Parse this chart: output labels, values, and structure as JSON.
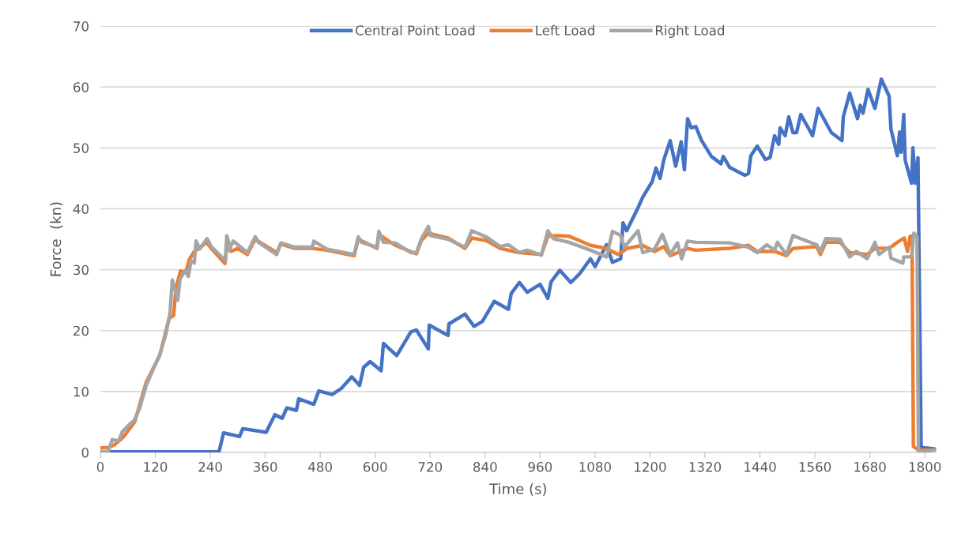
{
  "chart_data": {
    "type": "line",
    "xlabel": "Time (s)",
    "ylabel": "Force  (kn)",
    "xlim": [
      0,
      1825
    ],
    "xticks": [
      0,
      120,
      240,
      360,
      480,
      600,
      720,
      840,
      960,
      1080,
      1200,
      1320,
      1440,
      1560,
      1680,
      1800
    ],
    "ylim": [
      0,
      70
    ],
    "yticks": [
      0,
      10,
      20,
      30,
      40,
      50,
      60,
      70
    ],
    "grid": "y",
    "legend": "top",
    "marker": "none",
    "line_style": "solid",
    "series": [
      {
        "name": "Central Point Load",
        "color": "#4472c4",
        "x": [
          17,
          259,
          269,
          304,
          311,
          362,
          381,
          397,
          407,
          428,
          433,
          466,
          477,
          506,
          526,
          549,
          566,
          575,
          589,
          613,
          618,
          647,
          678,
          690,
          716,
          718,
          759,
          761,
          796,
          816,
          834,
          860,
          891,
          897,
          915,
          932,
          960,
          977,
          984,
          1003,
          1027,
          1046,
          1070,
          1080,
          1105,
          1118,
          1136,
          1141,
          1149,
          1174,
          1184,
          1205,
          1213,
          1222,
          1230,
          1244,
          1256,
          1268,
          1275,
          1282,
          1290,
          1300,
          1312,
          1334,
          1355,
          1360,
          1374,
          1407,
          1415,
          1420,
          1434,
          1452,
          1462,
          1472,
          1481,
          1484,
          1495,
          1503,
          1512,
          1520,
          1529,
          1555,
          1567,
          1596,
          1619,
          1622,
          1636,
          1653,
          1659,
          1665,
          1676,
          1691,
          1705,
          1722,
          1726,
          1740,
          1745,
          1748,
          1754,
          1757,
          1771,
          1774,
          1779,
          1785,
          1792,
          1821
        ],
        "values": [
          0.1,
          0.1,
          3.2,
          2.6,
          3.9,
          3.3,
          6.2,
          5.6,
          7.3,
          6.9,
          8.8,
          7.9,
          10.1,
          9.5,
          10.5,
          12.4,
          11.0,
          14.0,
          14.9,
          13.4,
          17.9,
          15.9,
          19.8,
          20.1,
          17.0,
          20.9,
          19.2,
          21.1,
          22.7,
          20.7,
          21.5,
          24.8,
          23.5,
          26.1,
          27.9,
          26.3,
          27.6,
          25.3,
          28.0,
          29.9,
          27.9,
          29.3,
          31.8,
          30.5,
          34.1,
          31.2,
          31.8,
          37.7,
          36.4,
          40.2,
          41.9,
          44.5,
          46.7,
          45.0,
          48.0,
          51.2,
          47.0,
          51.0,
          46.4,
          54.8,
          53.3,
          53.5,
          51.3,
          48.6,
          47.4,
          48.6,
          46.8,
          45.5,
          45.8,
          48.7,
          50.3,
          48.1,
          48.4,
          52.0,
          50.6,
          53.3,
          52.0,
          55.1,
          52.5,
          52.5,
          55.5,
          52.0,
          56.5,
          52.5,
          51.2,
          55.1,
          59.0,
          54.8,
          57.0,
          55.7,
          59.6,
          56.5,
          61.3,
          58.5,
          53.1,
          48.7,
          52.6,
          49.3,
          55.5,
          48.0,
          44.2,
          50.0,
          44.2,
          48.4,
          0.8,
          0.6
        ]
      },
      {
        "name": "Left Load",
        "color": "#ed7d31",
        "x": [
          0,
          17,
          30,
          50,
          75,
          100,
          130,
          150,
          160,
          165,
          175,
          186,
          195,
          205,
          215,
          232,
          242,
          272,
          278,
          285,
          300,
          321,
          338,
          385,
          394,
          425,
          463,
          494,
          554,
          563,
          604,
          608,
          644,
          690,
          701,
          716,
          759,
          796,
          811,
          842,
          873,
          915,
          963,
          977,
          1000,
          1023,
          1045,
          1070,
          1105,
          1130,
          1150,
          1184,
          1210,
          1230,
          1244,
          1282,
          1300,
          1374,
          1415,
          1434,
          1472,
          1498,
          1512,
          1564,
          1572,
          1584,
          1615,
          1636,
          1674,
          1691,
          1722,
          1740,
          1755,
          1762,
          1768,
          1772,
          1775,
          1785,
          1821
        ],
        "values": [
          0.7,
          0.8,
          1.2,
          2.5,
          5.0,
          11.5,
          16.0,
          22.0,
          22.5,
          27.0,
          29.8,
          29.5,
          31.8,
          33.0,
          33.5,
          34.5,
          33.5,
          31.0,
          35.0,
          33.0,
          33.5,
          32.5,
          35.0,
          32.8,
          34.2,
          33.5,
          33.5,
          33.2,
          32.3,
          35.0,
          33.5,
          35.8,
          34.0,
          32.6,
          34.8,
          36.0,
          35.2,
          33.5,
          35.2,
          34.8,
          33.5,
          32.8,
          32.5,
          35.5,
          35.6,
          35.5,
          34.8,
          34.0,
          33.5,
          32.5,
          33.5,
          34.0,
          33.0,
          33.8,
          32.3,
          33.5,
          33.2,
          33.5,
          34.0,
          33.0,
          33.0,
          32.3,
          33.5,
          33.8,
          32.5,
          34.5,
          34.5,
          32.8,
          32.5,
          33.5,
          33.5,
          34.5,
          35.2,
          33.0,
          35.5,
          35.5,
          1.0,
          0.4,
          0.4
        ]
      },
      {
        "name": "Right Load",
        "color": "#a5a5a5",
        "x": [
          0,
          17,
          26,
          40,
          48,
          62,
          74,
          86,
          100,
          114,
          129,
          143,
          152,
          157,
          169,
          174,
          186,
          192,
          198,
          205,
          209,
          217,
          233,
          242,
          273,
          276,
          281,
          290,
          321,
          338,
          345,
          385,
          394,
          425,
          463,
          466,
          494,
          554,
          563,
          570,
          604,
          608,
          618,
          644,
          678,
          690,
          701,
          716,
          721,
          759,
          796,
          811,
          842,
          873,
          891,
          915,
          932,
          963,
          977,
          989,
          1023,
          1070,
          1105,
          1118,
          1136,
          1144,
          1174,
          1184,
          1210,
          1227,
          1244,
          1260,
          1269,
          1282,
          1300,
          1374,
          1415,
          1434,
          1455,
          1472,
          1478,
          1498,
          1512,
          1529,
          1564,
          1572,
          1584,
          1615,
          1636,
          1650,
          1674,
          1691,
          1700,
          1722,
          1726,
          1752,
          1754,
          1771,
          1776,
          1783,
          1786,
          1821
        ],
        "values": [
          0.1,
          0.1,
          2.1,
          1.9,
          3.4,
          4.5,
          5.2,
          7.3,
          11.0,
          13.4,
          15.9,
          19.4,
          22.8,
          28.3,
          25.0,
          28.5,
          29.9,
          28.9,
          31.5,
          31.1,
          34.7,
          33.4,
          35.1,
          33.8,
          31.5,
          35.6,
          33.2,
          34.7,
          32.8,
          35.4,
          34.5,
          32.5,
          34.4,
          33.7,
          33.7,
          34.7,
          33.4,
          32.5,
          35.4,
          34.5,
          33.7,
          36.3,
          34.5,
          34.4,
          32.8,
          32.8,
          35.1,
          37.1,
          35.6,
          35.0,
          33.7,
          36.4,
          35.4,
          33.8,
          34.1,
          32.8,
          33.2,
          32.4,
          36.4,
          35.1,
          34.5,
          33.2,
          32.1,
          36.3,
          35.6,
          33.7,
          36.4,
          32.8,
          33.4,
          35.8,
          32.5,
          34.4,
          31.8,
          34.7,
          34.5,
          34.4,
          33.7,
          32.8,
          34.1,
          33.2,
          34.5,
          32.5,
          35.6,
          35.1,
          34.1,
          33.0,
          35.1,
          35.0,
          32.1,
          33.0,
          31.8,
          34.5,
          32.5,
          33.7,
          31.9,
          31.1,
          32.1,
          32.1,
          36.0,
          35.4,
          0.1,
          0.4
        ]
      }
    ]
  }
}
